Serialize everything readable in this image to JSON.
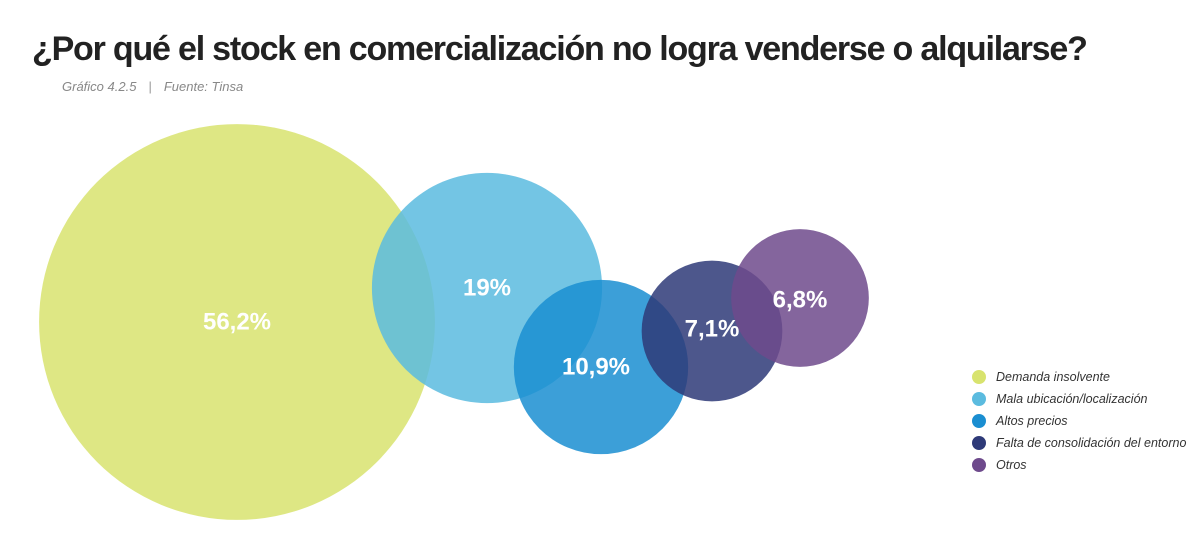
{
  "title": "¿Por qué el stock en comercialización no logra venderse o alquilarse?",
  "subtitle": {
    "figure": "Gráfico 4.2.5",
    "source": "Fuente: Tinsa"
  },
  "chart_data": {
    "type": "bubble",
    "title": "¿Por qué el stock en comercialización no logra venderse o alquilarse?",
    "unit": "%",
    "categories": [
      "Demanda insolvente",
      "Mala ubicación/localización",
      "Altos precios",
      "Falta de consolidación del entorno",
      "Otros"
    ],
    "values": [
      56.2,
      19,
      10.9,
      7.1,
      6.8
    ],
    "labels": [
      "56,2%",
      "19%",
      "10,9%",
      "7,1%",
      "6,8%"
    ],
    "colors": [
      "#d8e36e",
      "#5bbbdf",
      "#1a8ed1",
      "#2e3a78",
      "#6e4a8c"
    ],
    "legend_position": "bottom-right"
  }
}
